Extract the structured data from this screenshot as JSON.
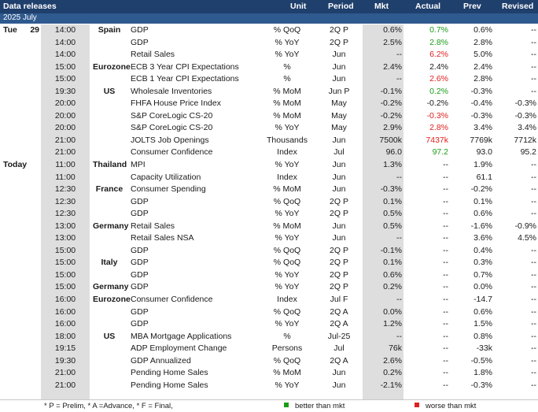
{
  "header": {
    "title": "Data releases",
    "subtitle": "2025 July",
    "col_unit": "Unit",
    "col_period": "Period",
    "col_mkt": "Mkt",
    "col_actual": "Actual",
    "col_prev": "Prev",
    "col_revised": "Revised"
  },
  "rows": [
    {
      "day": "Tue",
      "date": "29",
      "time": "14:00",
      "country": "Spain",
      "event": "GDP",
      "unit": "% QoQ",
      "period": "2Q P",
      "mkt": "0.6%",
      "actual": "0.7%",
      "actual_status": "better",
      "prev": "0.6%",
      "revised": "--"
    },
    {
      "day": "",
      "date": "",
      "time": "14:00",
      "country": "",
      "event": "GDP",
      "unit": "% YoY",
      "period": "2Q P",
      "mkt": "2.5%",
      "actual": "2.8%",
      "actual_status": "better",
      "prev": "2.8%",
      "revised": "--"
    },
    {
      "day": "",
      "date": "",
      "time": "14:00",
      "country": "",
      "event": "Retail Sales",
      "unit": "% YoY",
      "period": "Jun",
      "mkt": "--",
      "actual": "6.2%",
      "actual_status": "worse",
      "prev": "5.0%",
      "revised": "--"
    },
    {
      "day": "",
      "date": "",
      "time": "15:00",
      "country": "Eurozone",
      "event": "ECB 3 Year CPI Expectations",
      "unit": "%",
      "period": "Jun",
      "mkt": "2.4%",
      "actual": "2.4%",
      "actual_status": "",
      "prev": "2.4%",
      "revised": "--"
    },
    {
      "day": "",
      "date": "",
      "time": "15:00",
      "country": "",
      "event": "ECB 1 Year CPI Expectations",
      "unit": "%",
      "period": "Jun",
      "mkt": "--",
      "actual": "2.6%",
      "actual_status": "worse",
      "prev": "2.8%",
      "revised": "--"
    },
    {
      "day": "",
      "date": "",
      "time": "19:30",
      "country": "US",
      "event": "Wholesale Inventories",
      "unit": "% MoM",
      "period": "Jun P",
      "mkt": "-0.1%",
      "actual": "0.2%",
      "actual_status": "better",
      "prev": "-0.3%",
      "revised": "--"
    },
    {
      "day": "",
      "date": "",
      "time": "20:00",
      "country": "",
      "event": "FHFA House Price Index",
      "unit": "% MoM",
      "period": "May",
      "mkt": "-0.2%",
      "actual": "-0.2%",
      "actual_status": "",
      "prev": "-0.4%",
      "revised": "-0.3%"
    },
    {
      "day": "",
      "date": "",
      "time": "20:00",
      "country": "",
      "event": "S&P CoreLogic CS-20",
      "unit": "% MoM",
      "period": "May",
      "mkt": "-0.2%",
      "actual": "-0.3%",
      "actual_status": "worse",
      "prev": "-0.3%",
      "revised": "-0.3%"
    },
    {
      "day": "",
      "date": "",
      "time": "20:00",
      "country": "",
      "event": "S&P CoreLogic CS-20",
      "unit": "% YoY",
      "period": "May",
      "mkt": "2.9%",
      "actual": "2.8%",
      "actual_status": "worse",
      "prev": "3.4%",
      "revised": "3.4%"
    },
    {
      "day": "",
      "date": "",
      "time": "21:00",
      "country": "",
      "event": "JOLTS Job Openings",
      "unit": "Thousands",
      "period": "Jun",
      "mkt": "7500k",
      "actual": "7437k",
      "actual_status": "worse",
      "prev": "7769k",
      "revised": "7712k"
    },
    {
      "day": "",
      "date": "",
      "time": "21:00",
      "country": "",
      "event": "Consumer Confidence",
      "unit": "Index",
      "period": "Jul",
      "mkt": "96.0",
      "actual": "97.2",
      "actual_status": "better",
      "prev": "93.0",
      "revised": "95.2"
    },
    {
      "day": "Today",
      "date": "",
      "time": "11:00",
      "country": "Thailand",
      "event": "MPI",
      "unit": "% YoY",
      "period": "Jun",
      "mkt": "1.3%",
      "actual": "--",
      "actual_status": "",
      "prev": "1.9%",
      "revised": "--"
    },
    {
      "day": "",
      "date": "",
      "time": "11:00",
      "country": "",
      "event": "Capacity Utilization",
      "unit": "Index",
      "period": "Jun",
      "mkt": "--",
      "actual": "--",
      "actual_status": "",
      "prev": "61.1",
      "revised": "--"
    },
    {
      "day": "",
      "date": "",
      "time": "12:30",
      "country": "France",
      "event": "Consumer Spending",
      "unit": "% MoM",
      "period": "Jun",
      "mkt": "-0.3%",
      "actual": "--",
      "actual_status": "",
      "prev": "-0.2%",
      "revised": "--"
    },
    {
      "day": "",
      "date": "",
      "time": "12:30",
      "country": "",
      "event": "GDP",
      "unit": "% QoQ",
      "period": "2Q P",
      "mkt": "0.1%",
      "actual": "--",
      "actual_status": "",
      "prev": "0.1%",
      "revised": "--"
    },
    {
      "day": "",
      "date": "",
      "time": "12:30",
      "country": "",
      "event": "GDP",
      "unit": "% YoY",
      "period": "2Q P",
      "mkt": "0.5%",
      "actual": "--",
      "actual_status": "",
      "prev": "0.6%",
      "revised": "--"
    },
    {
      "day": "",
      "date": "",
      "time": "13:00",
      "country": "Germany",
      "event": "Retail Sales",
      "unit": "% MoM",
      "period": "Jun",
      "mkt": "0.5%",
      "actual": "--",
      "actual_status": "",
      "prev": "-1.6%",
      "revised": "-0.9%"
    },
    {
      "day": "",
      "date": "",
      "time": "13:00",
      "country": "",
      "event": "Retail Sales NSA",
      "unit": "% YoY",
      "period": "Jun",
      "mkt": "--",
      "actual": "--",
      "actual_status": "",
      "prev": "3.6%",
      "revised": "4.5%"
    },
    {
      "day": "",
      "date": "",
      "time": "15:00",
      "country": "",
      "event": "GDP",
      "unit": "% QoQ",
      "period": "2Q P",
      "mkt": "-0.1%",
      "actual": "--",
      "actual_status": "",
      "prev": "0.4%",
      "revised": "--"
    },
    {
      "day": "",
      "date": "",
      "time": "15:00",
      "country": "Italy",
      "event": "GDP",
      "unit": "% QoQ",
      "period": "2Q P",
      "mkt": "0.1%",
      "actual": "--",
      "actual_status": "",
      "prev": "0.3%",
      "revised": "--"
    },
    {
      "day": "",
      "date": "",
      "time": "15:00",
      "country": "",
      "event": "GDP",
      "unit": "% YoY",
      "period": "2Q P",
      "mkt": "0.6%",
      "actual": "--",
      "actual_status": "",
      "prev": "0.7%",
      "revised": "--"
    },
    {
      "day": "",
      "date": "",
      "time": "15:00",
      "country": "Germany",
      "event": "GDP",
      "unit": "% YoY",
      "period": "2Q P",
      "mkt": "0.2%",
      "actual": "--",
      "actual_status": "",
      "prev": "0.0%",
      "revised": "--"
    },
    {
      "day": "",
      "date": "",
      "time": "16:00",
      "country": "Eurozone",
      "event": "Consumer Confidence",
      "unit": "Index",
      "period": "Jul F",
      "mkt": "--",
      "actual": "--",
      "actual_status": "",
      "prev": "-14.7",
      "revised": "--"
    },
    {
      "day": "",
      "date": "",
      "time": "16:00",
      "country": "",
      "event": "GDP",
      "unit": "% QoQ",
      "period": "2Q A",
      "mkt": "0.0%",
      "actual": "--",
      "actual_status": "",
      "prev": "0.6%",
      "revised": "--"
    },
    {
      "day": "",
      "date": "",
      "time": "16:00",
      "country": "",
      "event": "GDP",
      "unit": "% YoY",
      "period": "2Q A",
      "mkt": "1.2%",
      "actual": "--",
      "actual_status": "",
      "prev": "1.5%",
      "revised": "--"
    },
    {
      "day": "",
      "date": "",
      "time": "18:00",
      "country": "US",
      "event": "MBA Mortgage Applications",
      "unit": "%",
      "period": "Jul-25",
      "mkt": "--",
      "actual": "--",
      "actual_status": "",
      "prev": "0.8%",
      "revised": "--"
    },
    {
      "day": "",
      "date": "",
      "time": "19:15",
      "country": "",
      "event": "ADP Employment Change",
      "unit": "Persons",
      "period": "Jul",
      "mkt": "76k",
      "actual": "--",
      "actual_status": "",
      "prev": "-33k",
      "revised": "--"
    },
    {
      "day": "",
      "date": "",
      "time": "19:30",
      "country": "",
      "event": "GDP Annualized",
      "unit": "% QoQ",
      "period": "2Q A",
      "mkt": "2.6%",
      "actual": "--",
      "actual_status": "",
      "prev": "-0.5%",
      "revised": "--"
    },
    {
      "day": "",
      "date": "",
      "time": "21:00",
      "country": "",
      "event": "Pending Home Sales",
      "unit": "% MoM",
      "period": "Jun",
      "mkt": "0.2%",
      "actual": "--",
      "actual_status": "",
      "prev": "1.8%",
      "revised": "--"
    },
    {
      "day": "",
      "date": "",
      "time": "21:00",
      "country": "",
      "event": "Pending Home Sales",
      "unit": "% YoY",
      "period": "Jun",
      "mkt": "-2.1%",
      "actual": "--",
      "actual_status": "",
      "prev": "-0.3%",
      "revised": "--"
    }
  ],
  "footer": {
    "note": "* P = Prelim, * A =Advance, * F = Final,",
    "better_label": "better than mkt",
    "worse_label": "worse than mkt",
    "better_color": "#1a9c1a",
    "worse_color": "#e02020"
  }
}
